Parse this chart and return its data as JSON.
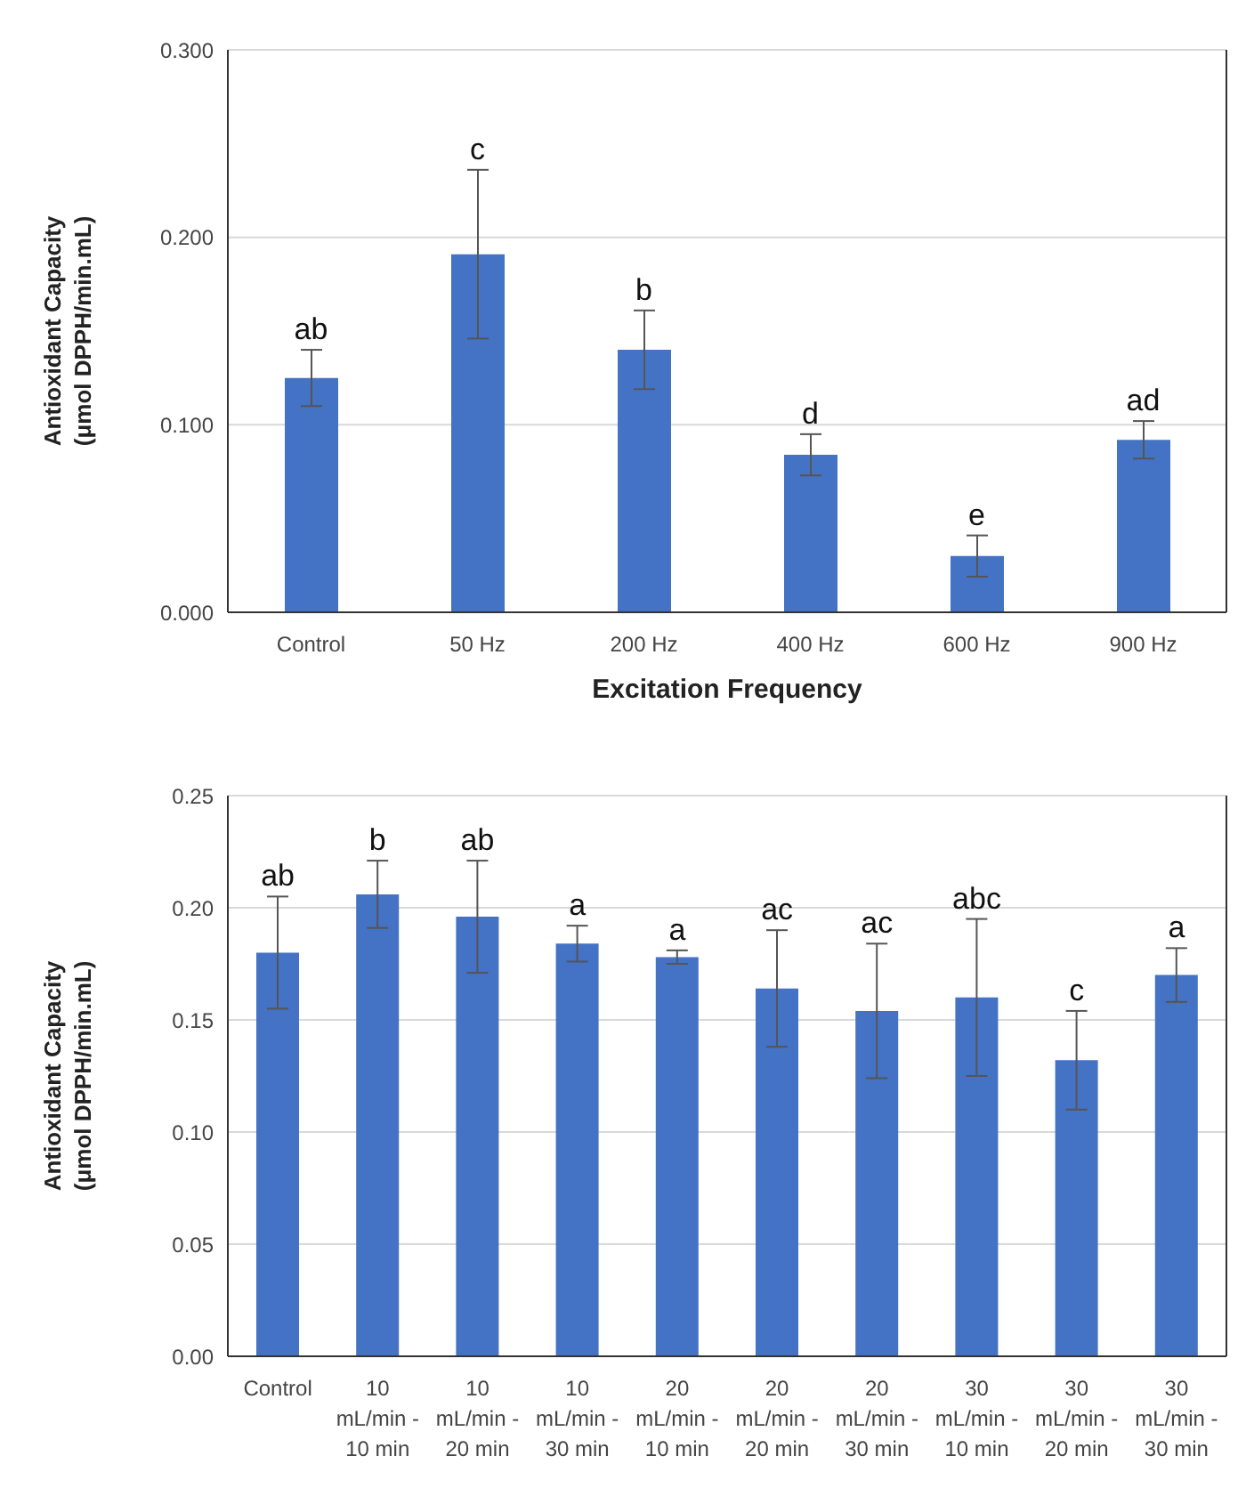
{
  "chart_data": [
    {
      "type": "bar",
      "xlabel": "Excitation Frequency",
      "ylabel": "Antioxidant Capacity\n(μmol DPPH/min.mL)",
      "categories": [
        "Control",
        "50 Hz",
        "200 Hz",
        "400 Hz",
        "600 Hz",
        "900 Hz"
      ],
      "values": [
        0.125,
        0.191,
        0.14,
        0.084,
        0.03,
        0.092
      ],
      "color": "#4472c4",
      "errors": [
        0.015,
        0.045,
        0.021,
        0.011,
        0.011,
        0.01
      ],
      "ylim": [
        0,
        0.3
      ],
      "yticks": [
        {
          "value": 0,
          "label": "0.000"
        },
        {
          "value": 0.1,
          "label": "0.100"
        },
        {
          "value": 0.2,
          "label": "0.200"
        },
        {
          "value": 0.3,
          "label": "0.300"
        }
      ],
      "grid": "y",
      "annotations": [
        {
          "text": "ab",
          "x": "Control",
          "y": 0.14
        },
        {
          "text": "c",
          "x": "50 Hz",
          "y": 0.236
        },
        {
          "text": "b",
          "x": "200 Hz",
          "y": 0.161
        },
        {
          "text": "d",
          "x": "400 Hz",
          "y": 0.095
        },
        {
          "text": "e",
          "x": "600 Hz",
          "y": 0.041
        },
        {
          "text": "ad",
          "x": "900 Hz",
          "y": 0.102
        }
      ]
    },
    {
      "type": "bar",
      "ylabel": "Antioxidant Capacity\n(μmol DPPH/min.mL)",
      "categories": [
        "Control",
        "10 mL/min - 10 min",
        "10 mL/min - 20 min",
        "10 mL/min - 30 min",
        "20 mL/min - 10 min",
        "20 mL/min - 20 min",
        "20 mL/min - 30 min",
        "30 mL/min - 10 min",
        "30 mL/min - 20 min",
        "30 mL/min - 30 min"
      ],
      "values": [
        0.18,
        0.206,
        0.196,
        0.184,
        0.178,
        0.164,
        0.154,
        0.16,
        0.132,
        0.17
      ],
      "color": "#4472c4",
      "errors": [
        0.025,
        0.015,
        0.025,
        0.008,
        0.003,
        0.026,
        0.03,
        0.035,
        0.022,
        0.012
      ],
      "ylim": [
        0,
        0.25
      ],
      "yticks": [
        {
          "value": 0,
          "label": "0.00"
        },
        {
          "value": 0.05,
          "label": "0.05"
        },
        {
          "value": 0.1,
          "label": "0.10"
        },
        {
          "value": 0.15,
          "label": "0.15"
        },
        {
          "value": 0.2,
          "label": "0.20"
        },
        {
          "value": 0.25,
          "label": "0.25"
        }
      ],
      "grid": "y",
      "annotations": [
        {
          "text": "ab",
          "x": "Control",
          "y": 0.205
        },
        {
          "text": "b",
          "x": "10 mL/min - 10 min",
          "y": 0.221
        },
        {
          "text": "ab",
          "x": "10 mL/min - 20 min",
          "y": 0.221
        },
        {
          "text": "a",
          "x": "10 mL/min - 30 min",
          "y": 0.192
        },
        {
          "text": "a",
          "x": "20 mL/min - 10 min",
          "y": 0.181
        },
        {
          "text": "ac",
          "x": "20 mL/min - 20 min",
          "y": 0.19
        },
        {
          "text": "ac",
          "x": "20 mL/min - 30 min",
          "y": 0.184
        },
        {
          "text": "abc",
          "x": "30 mL/min - 10 min",
          "y": 0.195
        },
        {
          "text": "c",
          "x": "30 mL/min - 20 min",
          "y": 0.154
        },
        {
          "text": "a",
          "x": "30 mL/min - 30 min",
          "y": 0.182
        }
      ]
    }
  ]
}
